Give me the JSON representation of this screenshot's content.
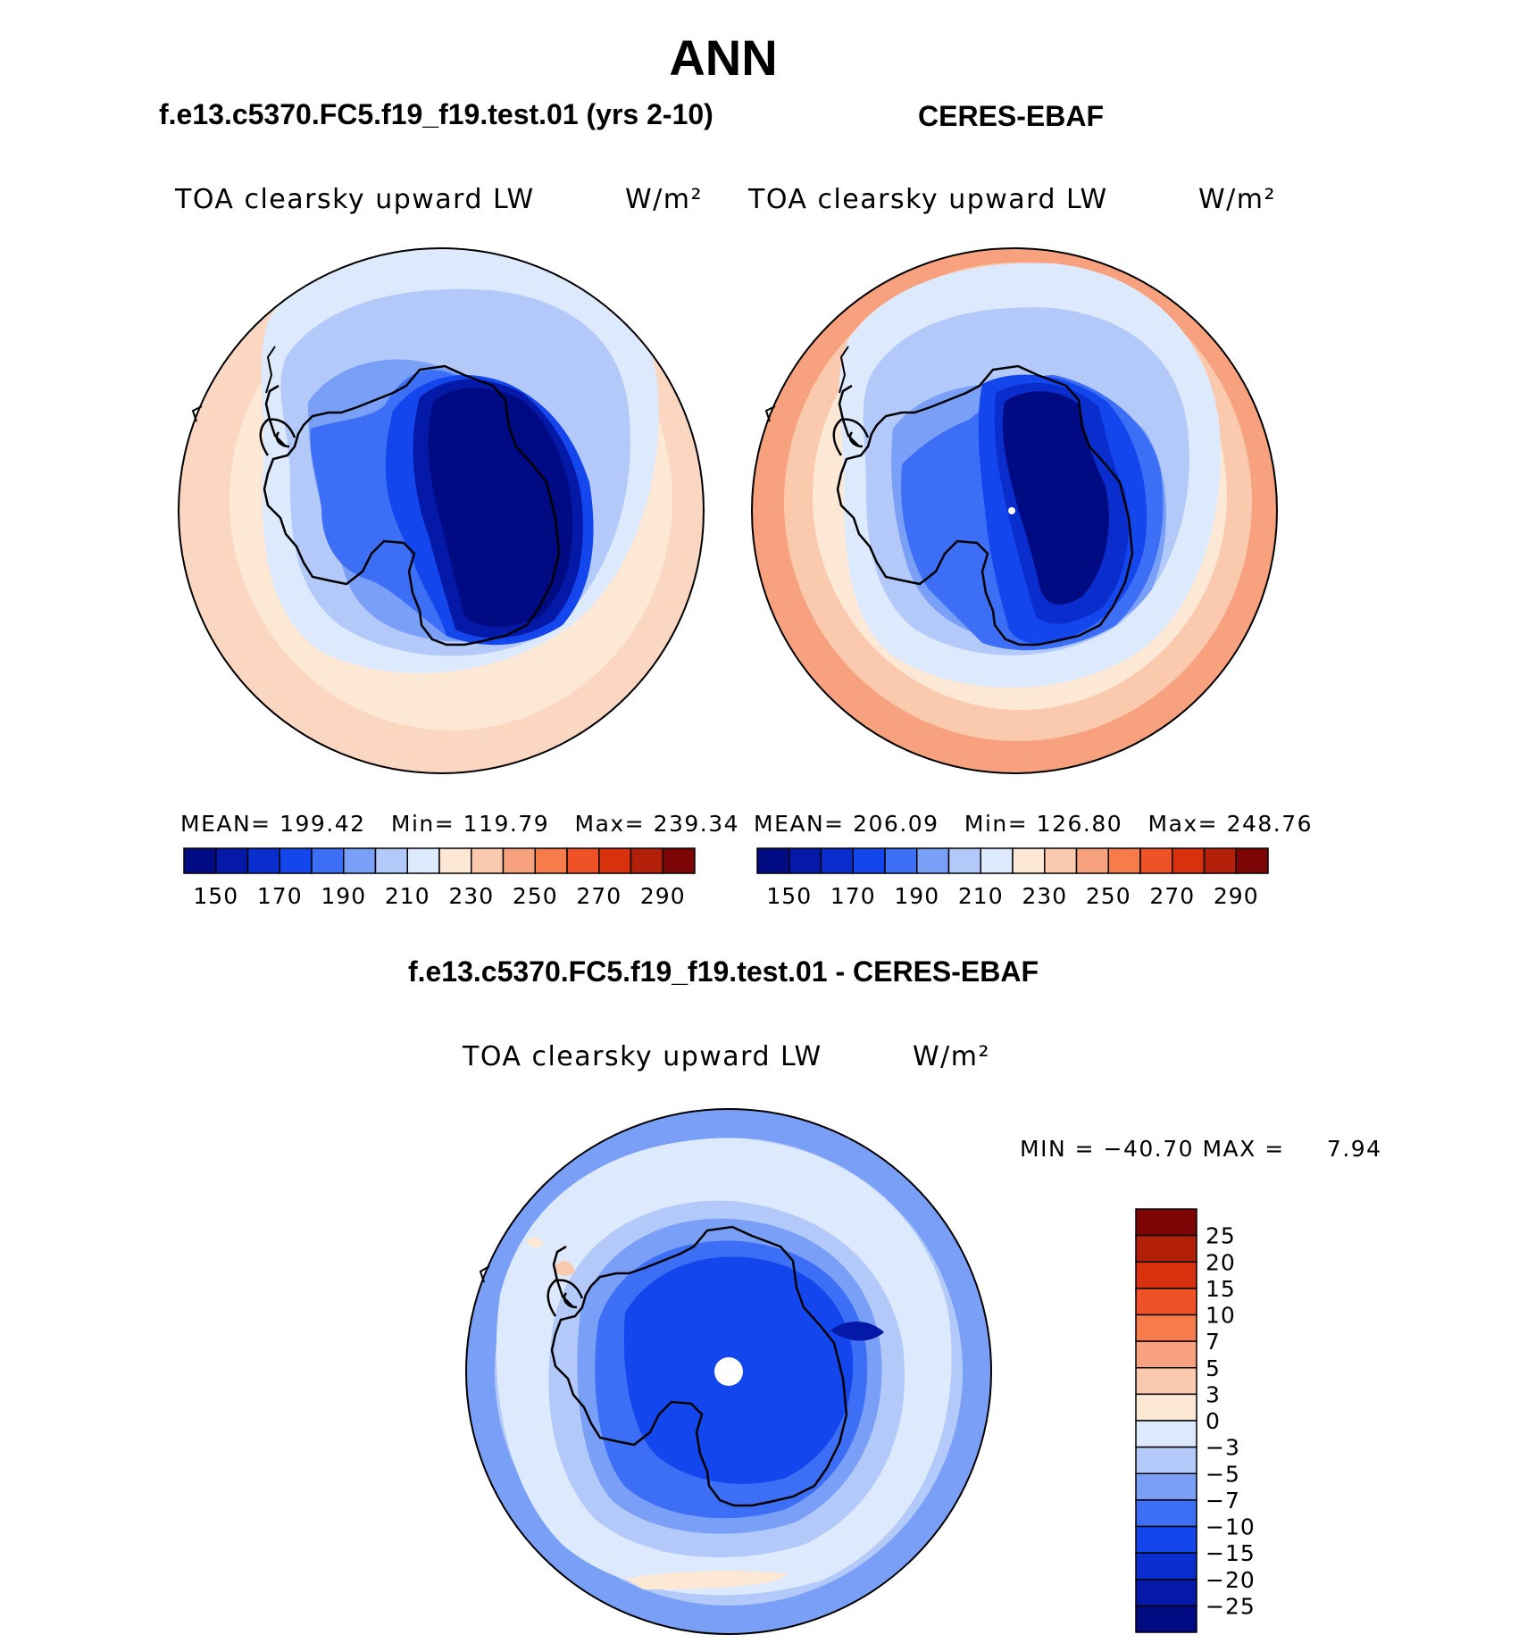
{
  "title": "ANN",
  "panels": {
    "left": {
      "case_title": "f.e13.c5370.FC5.f19_f19.test.01 (yrs 2-10)",
      "variable": "TOA clearsky upward LW",
      "units": "W/m²",
      "stats": {
        "mean_label": "MEAN=",
        "mean": "199.42",
        "min_label": "Min=",
        "min": "119.79",
        "max_label": "Max=",
        "max": "239.34"
      }
    },
    "right": {
      "case_title": "CERES-EBAF",
      "variable": "TOA clearsky upward LW",
      "units": "W/m²",
      "stats": {
        "mean_label": "MEAN=",
        "mean": "206.09",
        "min_label": "Min=",
        "min": "126.80",
        "max_label": "Max=",
        "max": "248.76"
      }
    },
    "diff": {
      "case_title": "f.e13.c5370.FC5.f19_f19.test.01 - CERES-EBAF",
      "variable": "TOA clearsky upward LW",
      "units": "W/m²",
      "stats": {
        "min_label": "MIN =",
        "min": "−40.70",
        "max_label": "MAX =",
        "max": "7.94"
      }
    }
  },
  "colorbar_main": {
    "labels": [
      "150",
      "170",
      "190",
      "210",
      "230",
      "250",
      "270",
      "290"
    ],
    "colors": [
      "#000a82",
      "#0519a8",
      "#0a2ecd",
      "#1446ee",
      "#3c6ff5",
      "#7a9ff7",
      "#b3c9fa",
      "#dde9fc",
      "#fde8d6",
      "#fbc9ae",
      "#f8a17e",
      "#f67c4c",
      "#ef5226",
      "#d9300d",
      "#b3200a",
      "#7d0505"
    ]
  },
  "colorbar_diff": {
    "labels": [
      "25",
      "20",
      "15",
      "10",
      "7",
      "5",
      "3",
      "0",
      "−3",
      "−5",
      "−7",
      "−10",
      "−15",
      "−20",
      "−25"
    ],
    "colors": [
      "#7d0505",
      "#b3200a",
      "#d9300d",
      "#ef5226",
      "#f67c4c",
      "#f8a17e",
      "#fbc9ae",
      "#fde8d6",
      "#dde9fc",
      "#b3c9fa",
      "#7a9ff7",
      "#3c6ff5",
      "#1446ee",
      "#0a2ecd",
      "#0519a8",
      "#000a82"
    ]
  }
}
